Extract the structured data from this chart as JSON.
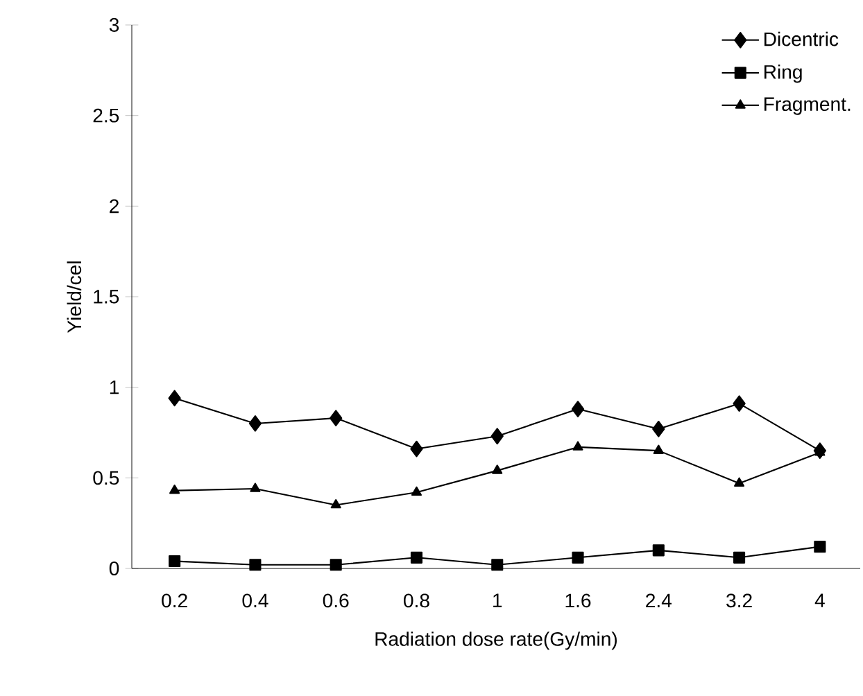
{
  "chart_data": {
    "type": "line",
    "xlabel": "Radiation dose rate(Gy/min)",
    "ylabel": "Yield/cel",
    "categories": [
      "0.2",
      "0.4",
      "0.6",
      "0.8",
      "1",
      "1.6",
      "2.4",
      "3.2",
      "4"
    ],
    "ylim": [
      0,
      3
    ],
    "yticks": [
      0,
      0.5,
      1,
      1.5,
      2,
      2.5,
      3
    ],
    "grid": false,
    "legend": "top right",
    "line_style": "solid",
    "series": [
      {
        "name": "Dicentric",
        "color": "#000000",
        "marker": "diamond",
        "values": [
          0.94,
          0.8,
          0.83,
          0.66,
          0.73,
          0.88,
          0.77,
          0.91,
          0.65
        ]
      },
      {
        "name": "Ring",
        "color": "#000000",
        "marker": "square",
        "values": [
          0.04,
          0.02,
          0.02,
          0.06,
          0.02,
          0.06,
          0.1,
          0.06,
          0.12
        ]
      },
      {
        "name": "Fragment.",
        "color": "#000000",
        "marker": "triangle",
        "values": [
          0.43,
          0.44,
          0.35,
          0.42,
          0.54,
          0.67,
          0.65,
          0.47,
          0.64
        ]
      }
    ]
  }
}
